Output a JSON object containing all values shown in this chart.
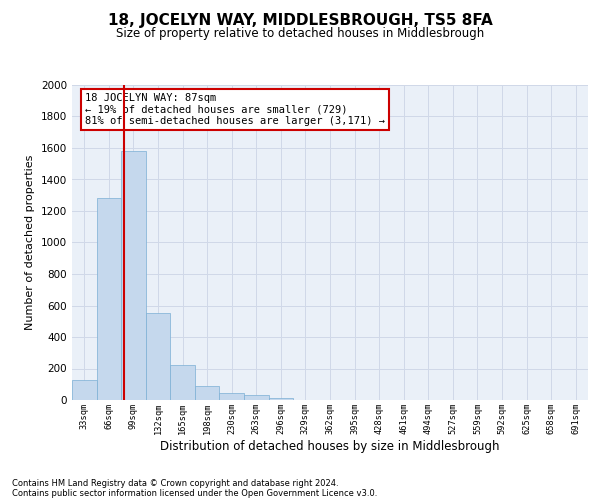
{
  "title": "18, JOCELYN WAY, MIDDLESBROUGH, TS5 8FA",
  "subtitle": "Size of property relative to detached houses in Middlesbrough",
  "xlabel": "Distribution of detached houses by size in Middlesbrough",
  "ylabel": "Number of detached properties",
  "footnote1": "Contains HM Land Registry data © Crown copyright and database right 2024.",
  "footnote2": "Contains public sector information licensed under the Open Government Licence v3.0.",
  "bar_color": "#c5d8ed",
  "bar_edgecolor": "#7bafd4",
  "bins": [
    "33sqm",
    "66sqm",
    "99sqm",
    "132sqm",
    "165sqm",
    "198sqm",
    "230sqm",
    "263sqm",
    "296sqm",
    "329sqm",
    "362sqm",
    "395sqm",
    "428sqm",
    "461sqm",
    "494sqm",
    "527sqm",
    "559sqm",
    "592sqm",
    "625sqm",
    "658sqm",
    "691sqm"
  ],
  "values": [
    130,
    1280,
    1580,
    550,
    220,
    90,
    45,
    30,
    15,
    0,
    0,
    0,
    0,
    0,
    0,
    0,
    0,
    0,
    0,
    0,
    0
  ],
  "annotation_text": "18 JOCELYN WAY: 87sqm\n← 19% of detached houses are smaller (729)\n81% of semi-detached houses are larger (3,171) →",
  "annotation_box_color": "#ffffff",
  "annotation_box_edgecolor": "#cc0000",
  "vline_color": "#cc0000",
  "vline_x": 1.636,
  "ylim": [
    0,
    2000
  ],
  "yticks": [
    0,
    200,
    400,
    600,
    800,
    1000,
    1200,
    1400,
    1600,
    1800,
    2000
  ],
  "grid_color": "#d0d8e8",
  "background_color": "#eaf0f8",
  "title_fontsize": 11,
  "subtitle_fontsize": 8.5,
  "annotation_fontsize": 7.5,
  "ylabel_fontsize": 8,
  "xlabel_fontsize": 8.5,
  "footnote_fontsize": 6
}
